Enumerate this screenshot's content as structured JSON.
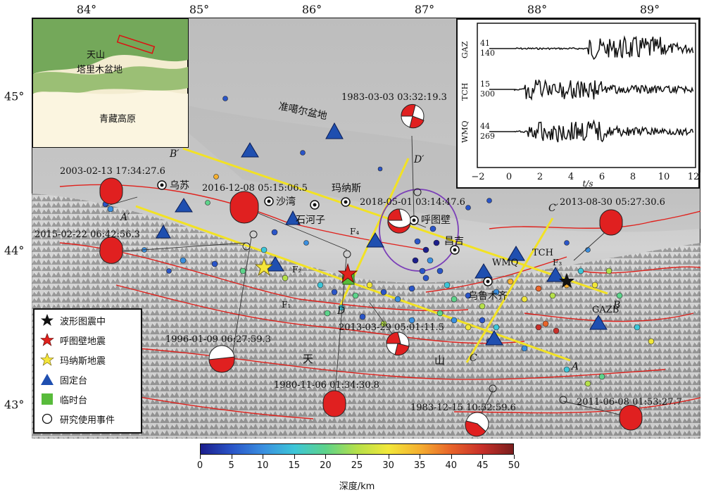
{
  "longitude_labels": [
    "84°",
    "85°",
    "86°",
    "87°",
    "88°",
    "89°"
  ],
  "latitude_labels": [
    "45°",
    "44°",
    "43°"
  ],
  "map_labels": {
    "basin": "准噶尔盆地",
    "tian": "天",
    "shan": "山"
  },
  "inset_map": {
    "tianshan": "天山",
    "tarim": "塔里木盆地",
    "tibet": "青藏高原"
  },
  "stations": [
    "TCH",
    "WMQ",
    "GAZB"
  ],
  "cities": [
    "乌苏",
    "沙湾",
    "玛纳斯",
    "石河子",
    "呼图壁",
    "昌吉",
    "乌鲁木齐"
  ],
  "profile_labels": [
    "A",
    "A′",
    "B",
    "B′",
    "C",
    "C′",
    "D",
    "D′"
  ],
  "fault_labels": [
    "F₁",
    "F₂",
    "F₃",
    "F₄"
  ],
  "focal_mechanisms": [
    "1983-03-03 03:32:19.3",
    "2003-02-13 17:34:27.6",
    "2016-12-08 05:15:06.5",
    "2018-05-01 03:14:47.6",
    "2013-08-30 05:27:30.6",
    "2015-02-22 06:42:56.3",
    "1996-01-09 06:27:59.3",
    "2013-03-29 05:01:11.5",
    "1980-11-06 01:34:30.8",
    "1983-12-15 10:52:59.6",
    "2011-06-08 01:53:27.7"
  ],
  "waveform_panel": {
    "traces": [
      {
        "station": "GAZ",
        "top_value": "41",
        "bottom_value": "140"
      },
      {
        "station": "TCH",
        "top_value": "15",
        "bottom_value": "300"
      },
      {
        "station": "WMQ",
        "top_value": "44",
        "bottom_value": "269"
      }
    ],
    "x_ticks": [
      "−2",
      "0",
      "2",
      "4",
      "6",
      "8",
      "10",
      "12"
    ],
    "x_label": "t/s"
  },
  "legend": {
    "items": [
      {
        "label": "波形图震中",
        "symbol": "black-star"
      },
      {
        "label": "呼图壁地震",
        "symbol": "red-star"
      },
      {
        "label": "玛纳斯地震",
        "symbol": "yellow-star"
      },
      {
        "label": "固定台",
        "symbol": "blue-triangle"
      },
      {
        "label": "临时台",
        "symbol": "green-square"
      },
      {
        "label": "研究使用事件",
        "symbol": "open-circle"
      }
    ]
  },
  "colorbar": {
    "ticks": [
      "0",
      "5",
      "10",
      "15",
      "20",
      "25",
      "30",
      "35",
      "40",
      "45",
      "50"
    ],
    "title": "深度/km"
  },
  "colors": {
    "profile_line": "#f2e224",
    "fault_line": "#e0211c",
    "station": "#1f4fb0",
    "compression": "#e02020"
  }
}
